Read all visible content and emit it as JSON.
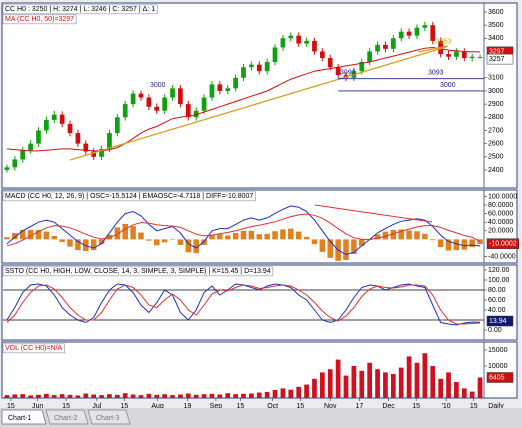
{
  "chart_data": [
    {
      "type": "candlestick",
      "legend": "CC H0 : 3250 | H: 3274 | L: 3246 | C: 3257 | Δ: 1",
      "ma_legend": "MA (CC H0, 50)=3297",
      "up_color": "#10a010",
      "down_color": "#d01010",
      "candles": [
        [
          2400,
          2440,
          2380,
          2420
        ],
        [
          2420,
          2505,
          2395,
          2480
        ],
        [
          2480,
          2575,
          2455,
          2550
        ],
        [
          2550,
          2625,
          2525,
          2600
        ],
        [
          2600,
          2725,
          2575,
          2700
        ],
        [
          2700,
          2805,
          2675,
          2780
        ],
        [
          2780,
          2850,
          2755,
          2820
        ],
        [
          2820,
          2845,
          2725,
          2750
        ],
        [
          2750,
          2775,
          2655,
          2680
        ],
        [
          2680,
          2705,
          2575,
          2600
        ],
        [
          2600,
          2625,
          2515,
          2540
        ],
        [
          2540,
          2565,
          2475,
          2500
        ],
        [
          2500,
          2585,
          2475,
          2560
        ],
        [
          2560,
          2705,
          2535,
          2680
        ],
        [
          2680,
          2825,
          2655,
          2800
        ],
        [
          2800,
          2925,
          2775,
          2900
        ],
        [
          2900,
          3005,
          2875,
          2980
        ],
        [
          2980,
          3005,
          2925,
          2950
        ],
        [
          2950,
          2975,
          2855,
          2880
        ],
        [
          2880,
          2905,
          2825,
          2850
        ],
        [
          2850,
          2975,
          2825,
          2950
        ],
        [
          2950,
          3045,
          2925,
          3020
        ],
        [
          3020,
          3045,
          2875,
          2900
        ],
        [
          2900,
          2925,
          2775,
          2800
        ],
        [
          2800,
          2875,
          2775,
          2850
        ],
        [
          2850,
          2975,
          2825,
          2950
        ],
        [
          2950,
          3075,
          2925,
          3050
        ],
        [
          3050,
          3075,
          2975,
          3000
        ],
        [
          3000,
          3045,
          2975,
          3020
        ],
        [
          3020,
          3125,
          2995,
          3100
        ],
        [
          3100,
          3205,
          3075,
          3180
        ],
        [
          3180,
          3225,
          3155,
          3200
        ],
        [
          3200,
          3225,
          3125,
          3150
        ],
        [
          3150,
          3245,
          3125,
          3220
        ],
        [
          3220,
          3355,
          3195,
          3330
        ],
        [
          3330,
          3425,
          3305,
          3400
        ],
        [
          3400,
          3445,
          3375,
          3420
        ],
        [
          3420,
          3445,
          3335,
          3360
        ],
        [
          3360,
          3405,
          3335,
          3380
        ],
        [
          3380,
          3405,
          3275,
          3300
        ],
        [
          3300,
          3325,
          3225,
          3250
        ],
        [
          3250,
          3275,
          3155,
          3180
        ],
        [
          3180,
          3205,
          3095,
          3120
        ],
        [
          3120,
          3145,
          3075,
          3100
        ],
        [
          3100,
          3175,
          3075,
          3150
        ],
        [
          3150,
          3245,
          3125,
          3220
        ],
        [
          3220,
          3325,
          3195,
          3300
        ],
        [
          3300,
          3375,
          3275,
          3350
        ],
        [
          3350,
          3375,
          3295,
          3320
        ],
        [
          3320,
          3425,
          3295,
          3400
        ],
        [
          3400,
          3475,
          3375,
          3450
        ],
        [
          3450,
          3475,
          3395,
          3420
        ],
        [
          3420,
          3505,
          3395,
          3480
        ],
        [
          3480,
          3525,
          3455,
          3500
        ],
        [
          3500,
          3525,
          3355,
          3380
        ],
        [
          3380,
          3405,
          3255,
          3280
        ],
        [
          3280,
          3305,
          3235,
          3260
        ],
        [
          3260,
          3325,
          3235,
          3300
        ],
        [
          3300,
          3325,
          3225,
          3250
        ],
        [
          3250,
          3285,
          3225,
          3260
        ],
        [
          3250,
          3274,
          3246,
          3257
        ]
      ],
      "ma": {
        "color": "#d01010",
        "values": [
          2560,
          2555,
          2550,
          2545,
          2545,
          2550,
          2555,
          2560,
          2560,
          2555,
          2550,
          2545,
          2545,
          2555,
          2570,
          2600,
          2640,
          2680,
          2710,
          2730,
          2760,
          2790,
          2800,
          2810,
          2820,
          2840,
          2860,
          2880,
          2900,
          2920,
          2940,
          2960,
          2980,
          3000,
          3030,
          3060,
          3090,
          3110,
          3130,
          3150,
          3160,
          3170,
          3180,
          3190,
          3200,
          3210,
          3220,
          3235,
          3250,
          3265,
          3280,
          3295,
          3310,
          3325,
          3330,
          3320,
          3310,
          3305,
          3300,
          3298,
          3297
        ]
      },
      "ylim": [
        2263,
        3668
      ],
      "yticks": [
        3600,
        3500,
        3400,
        3100,
        3000,
        2900,
        2800,
        2700,
        2600,
        2500,
        2400
      ],
      "levels": [
        3000,
        3093
      ],
      "level_color": "#202090",
      "annotation": 3353,
      "trend_color": "#d8a020"
    },
    {
      "type": "macd",
      "legend": "MACD (CC H0, 12, 26, 9) | OSC=-15.5124 | EMAOSC=-4.7118 | DIFF=-10.8007",
      "series": [
        {
          "kind": "line",
          "color": "#2030c0",
          "values": [
            -10,
            5,
            20,
            30,
            40,
            45,
            40,
            25,
            10,
            -5,
            -15,
            -20,
            -10,
            15,
            40,
            60,
            65,
            55,
            35,
            20,
            25,
            30,
            15,
            -10,
            -20,
            -5,
            20,
            25,
            25,
            35,
            45,
            50,
            45,
            50,
            60,
            70,
            78,
            75,
            65,
            45,
            20,
            -5,
            -25,
            -35,
            -30,
            -15,
            0,
            15,
            25,
            35,
            42,
            45,
            48,
            45,
            30,
            10,
            -5,
            -10,
            -15,
            -13,
            -15.5
          ]
        },
        {
          "kind": "line",
          "color": "#e03030",
          "values": [
            -15,
            -10,
            -2,
            8,
            18,
            27,
            32,
            31,
            27,
            20,
            12,
            5,
            1,
            4,
            12,
            24,
            34,
            39,
            38,
            34,
            32,
            31,
            28,
            20,
            12,
            8,
            10,
            13,
            16,
            20,
            25,
            30,
            33,
            37,
            41,
            47,
            53,
            57,
            59,
            56,
            49,
            38,
            25,
            13,
            4,
            0,
            0,
            3,
            7,
            13,
            19,
            24,
            29,
            32,
            32,
            28,
            21,
            15,
            9,
            5,
            -4.7
          ]
        },
        {
          "kind": "bar",
          "color": "#e08020",
          "values": [
            5,
            15,
            22,
            22,
            22,
            18,
            8,
            -6,
            -17,
            -25,
            -27,
            -25,
            -11,
            11,
            28,
            36,
            31,
            16,
            -3,
            -14,
            -7,
            -1,
            -13,
            -30,
            -32,
            -13,
            10,
            12,
            9,
            15,
            20,
            20,
            12,
            13,
            19,
            23,
            25,
            18,
            6,
            -11,
            -29,
            -43,
            -50,
            -48,
            -34,
            -15,
            0,
            12,
            18,
            22,
            23,
            21,
            19,
            13,
            -2,
            -18,
            -26,
            -25,
            -24,
            -18,
            -10.8
          ]
        }
      ],
      "ylim": [
        -55,
        115
      ],
      "yticks": [
        {
          "value": 100,
          "label": "100.0000"
        },
        {
          "value": 80,
          "label": "80.0000"
        },
        {
          "value": 60,
          "label": "60.0000"
        },
        {
          "value": 40,
          "label": "40.0000"
        },
        {
          "value": 20,
          "label": "20.0000"
        },
        {
          "value": -40,
          "label": "-40.0000"
        }
      ],
      "marker": -10.0002
    },
    {
      "type": "stochastic",
      "legend": "SSTO (CC H0, HIGH, LOW, CLOSE, 14, 3, SIMPLE, 3, SIMPLE) | K=15.45 | D=13.94",
      "series": [
        {
          "kind": "line",
          "color": "#2030c0",
          "values": [
            20,
            45,
            75,
            90,
            92,
            88,
            70,
            45,
            30,
            20,
            15,
            25,
            55,
            80,
            92,
            90,
            75,
            50,
            35,
            55,
            80,
            70,
            35,
            20,
            40,
            75,
            88,
            70,
            80,
            92,
            90,
            85,
            80,
            88,
            92,
            90,
            85,
            70,
            60,
            40,
            20,
            15,
            20,
            40,
            65,
            85,
            90,
            88,
            80,
            85,
            90,
            92,
            88,
            85,
            50,
            15,
            12,
            10,
            14,
            16,
            15.45
          ]
        },
        {
          "kind": "line",
          "color": "#e03030",
          "values": [
            15,
            30,
            55,
            75,
            88,
            90,
            82,
            65,
            45,
            30,
            20,
            20,
            35,
            60,
            82,
            90,
            85,
            70,
            50,
            45,
            60,
            72,
            60,
            40,
            30,
            50,
            72,
            80,
            78,
            85,
            90,
            88,
            83,
            85,
            88,
            90,
            88,
            80,
            70,
            55,
            38,
            25,
            18,
            28,
            45,
            67,
            82,
            88,
            85,
            84,
            86,
            90,
            90,
            88,
            70,
            40,
            20,
            12,
            12,
            13,
            13.94
          ]
        }
      ],
      "ylim": [
        -20,
        130
      ],
      "yticks": [
        {
          "value": 120,
          "label": "120.00"
        },
        {
          "value": 100,
          "label": "100.00"
        },
        {
          "value": 80,
          "label": "80.00"
        },
        {
          "value": 60,
          "label": "60.00"
        },
        {
          "value": 40,
          "label": "40.00"
        },
        {
          "value": 0,
          "label": "0.00"
        }
      ],
      "levels": [
        80,
        20
      ]
    },
    {
      "type": "volume",
      "legend": "VOL (CC H0)=N/A",
      "color": "#d01020",
      "values": [
        900,
        1100,
        1200,
        800,
        1000,
        1300,
        900,
        1200,
        1000,
        800,
        1400,
        1100,
        900,
        1200,
        1000,
        1500,
        1100,
        900,
        1300,
        1000,
        1200,
        900,
        1100,
        1400,
        1000,
        1200,
        1300,
        1100,
        1500,
        1200,
        1300,
        1400,
        1700,
        1900,
        2500,
        3000,
        2600,
        3500,
        4200,
        6000,
        8000,
        9000,
        12000,
        7000,
        10000,
        8500,
        11000,
        9000,
        8000,
        7500,
        9500,
        13000,
        11000,
        14000,
        10000,
        6000,
        8000,
        5000,
        3000,
        2000,
        6405
      ],
      "ylim": [
        0,
        17500
      ],
      "yticks": [
        15000,
        10000
      ],
      "xlim": [
        -0.5,
        60.5
      ],
      "xticks": [
        {
          "value": 0.5,
          "label": "15"
        },
        {
          "value": 3.9,
          "label": "Jun"
        },
        {
          "value": 7.5,
          "label": "15"
        },
        {
          "value": 11.4,
          "label": "Jul"
        },
        {
          "value": 14.9,
          "label": "15"
        },
        {
          "value": 19.1,
          "label": "Aug"
        },
        {
          "value": 22.9,
          "label": "19"
        },
        {
          "value": 26.5,
          "label": "Sep"
        },
        {
          "value": 29.6,
          "label": "15"
        },
        {
          "value": 33.7,
          "label": "Oct"
        },
        {
          "value": 37.2,
          "label": "15"
        },
        {
          "value": 41,
          "label": "Nov"
        },
        {
          "value": 44.7,
          "label": "17"
        },
        {
          "value": 48.4,
          "label": "Dec"
        },
        {
          "value": 51.9,
          "label": "15"
        },
        {
          "value": 55.7,
          "label": "'10"
        },
        {
          "value": 59.2,
          "label": "15"
        }
      ],
      "interval": "Daily"
    }
  ],
  "tabs": [
    "Chart-1",
    "Chart-2",
    "Chart-3"
  ]
}
